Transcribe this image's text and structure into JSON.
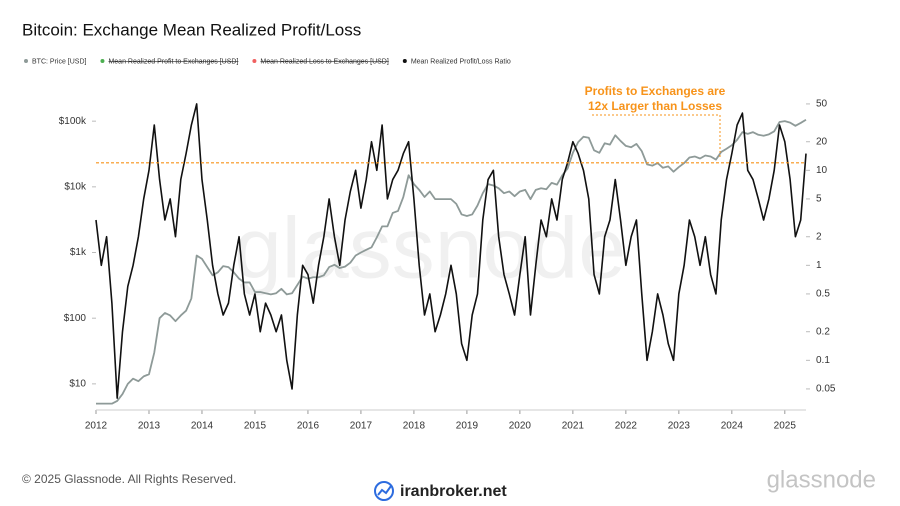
{
  "chart_data": {
    "type": "line",
    "title": "Bitcoin: Exchange Mean Realized Profit/Loss",
    "watermark": "glassnode",
    "footer": "© 2025 Glassnode. All Rights Reserved.",
    "brand": "glassnode",
    "partner": "iranbroker.net",
    "annotation": {
      "lines": [
        "Profits to Exchanges are",
        "12x Larger than Losses"
      ],
      "color": "#f7931a"
    },
    "reference_line": {
      "value": 12,
      "axis": "y2",
      "color": "#f7931a"
    },
    "log_y": true,
    "log_y2": true,
    "xlim": [
      2012,
      2025.4
    ],
    "xticks": [
      2012,
      2013,
      2014,
      2015,
      2016,
      2017,
      2018,
      2019,
      2020,
      2021,
      2022,
      2023,
      2024,
      2025
    ],
    "ylim": [
      4,
      210000
    ],
    "yticks": [
      {
        "value": 10,
        "label": "$10"
      },
      {
        "value": 100,
        "label": "$100"
      },
      {
        "value": 1000,
        "label": "$1k"
      },
      {
        "value": 10000,
        "label": "$10k"
      },
      {
        "value": 100000,
        "label": "$100k"
      }
    ],
    "y2lim": [
      0.03,
      55
    ],
    "y2ticks": [
      0.05,
      0.1,
      0.2,
      0.5,
      1,
      2,
      5,
      10,
      20,
      50
    ],
    "x": [
      2012.0,
      2012.1,
      2012.2,
      2012.3,
      2012.4,
      2012.5,
      2012.6,
      2012.7,
      2012.8,
      2012.9,
      2013.0,
      2013.1,
      2013.2,
      2013.3,
      2013.4,
      2013.5,
      2013.6,
      2013.7,
      2013.8,
      2013.9,
      2014.0,
      2014.1,
      2014.2,
      2014.3,
      2014.4,
      2014.5,
      2014.6,
      2014.7,
      2014.8,
      2014.9,
      2015.0,
      2015.1,
      2015.2,
      2015.3,
      2015.4,
      2015.5,
      2015.6,
      2015.7,
      2015.8,
      2015.9,
      2016.0,
      2016.1,
      2016.2,
      2016.3,
      2016.4,
      2016.5,
      2016.6,
      2016.7,
      2016.8,
      2016.9,
      2017.0,
      2017.1,
      2017.2,
      2017.3,
      2017.4,
      2017.5,
      2017.6,
      2017.7,
      2017.8,
      2017.9,
      2018.0,
      2018.1,
      2018.2,
      2018.3,
      2018.4,
      2018.5,
      2018.6,
      2018.7,
      2018.8,
      2018.9,
      2019.0,
      2019.1,
      2019.2,
      2019.3,
      2019.4,
      2019.5,
      2019.6,
      2019.7,
      2019.8,
      2019.9,
      2020.0,
      2020.1,
      2020.2,
      2020.3,
      2020.4,
      2020.5,
      2020.6,
      2020.7,
      2020.8,
      2020.9,
      2021.0,
      2021.1,
      2021.2,
      2021.3,
      2021.4,
      2021.5,
      2021.6,
      2021.7,
      2021.8,
      2021.9,
      2022.0,
      2022.1,
      2022.2,
      2022.3,
      2022.4,
      2022.5,
      2022.6,
      2022.7,
      2022.8,
      2022.9,
      2023.0,
      2023.1,
      2023.2,
      2023.3,
      2023.4,
      2023.5,
      2023.6,
      2023.7,
      2023.8,
      2023.9,
      2024.0,
      2024.1,
      2024.2,
      2024.3,
      2024.4,
      2024.5,
      2024.6,
      2024.7,
      2024.8,
      2024.9,
      2025.0,
      2025.1,
      2025.2,
      2025.3,
      2025.4
    ],
    "series": [
      {
        "name": "BTC: Price [USD]",
        "color": "#8e9a98",
        "values": [
          5,
          5,
          5,
          5,
          5.5,
          7,
          10,
          12,
          11,
          13,
          14,
          30,
          100,
          120,
          110,
          90,
          110,
          130,
          200,
          900,
          800,
          600,
          450,
          500,
          620,
          600,
          500,
          400,
          350,
          350,
          250,
          250,
          240,
          230,
          240,
          280,
          230,
          240,
          320,
          430,
          400,
          420,
          420,
          450,
          600,
          650,
          580,
          610,
          700,
          900,
          1000,
          1100,
          1200,
          1700,
          2500,
          2500,
          4000,
          4300,
          7000,
          15000,
          11000,
          9000,
          7000,
          8500,
          6500,
          6500,
          6500,
          6500,
          5500,
          3800,
          3600,
          3800,
          5200,
          8000,
          11000,
          10500,
          9500,
          8000,
          8500,
          7200,
          8500,
          9000,
          6500,
          9000,
          9500,
          9200,
          11500,
          10800,
          15000,
          19000,
          33000,
          48000,
          58000,
          56000,
          36000,
          33000,
          46000,
          44000,
          61000,
          50000,
          42000,
          40000,
          45000,
          35000,
          22000,
          21000,
          23000,
          19500,
          20500,
          17000,
          20000,
          23000,
          28000,
          29000,
          27000,
          30000,
          29000,
          26000,
          34000,
          38000,
          43000,
          52000,
          68000,
          64000,
          68000,
          62000,
          60000,
          63000,
          70000,
          97000,
          100000,
          95000,
          85000,
          94000,
          105000
        ]
      },
      {
        "name": "Mean Realized Profit to Exchanges [USD]",
        "color": "#4caf50",
        "hidden": true
      },
      {
        "name": "Mean Realized Loss to Exchanges [USD]",
        "color": "#f06060",
        "hidden": true
      },
      {
        "name": "Mean Realized Profit/Loss Ratio",
        "color": "#111111",
        "axis": "y2",
        "values": [
          3,
          1,
          2,
          0.4,
          0.04,
          0.2,
          0.6,
          1,
          2,
          5,
          10,
          30,
          8,
          3,
          5,
          2,
          8,
          15,
          30,
          50,
          8,
          3,
          1,
          0.5,
          0.3,
          0.4,
          1,
          2,
          0.5,
          0.3,
          0.5,
          0.2,
          0.4,
          0.3,
          0.2,
          0.3,
          0.1,
          0.05,
          0.3,
          1,
          0.8,
          0.4,
          1,
          2,
          5,
          2,
          1,
          3,
          6,
          10,
          4,
          8,
          20,
          10,
          30,
          5,
          8,
          10,
          15,
          20,
          5,
          1,
          0.3,
          0.5,
          0.2,
          0.3,
          0.5,
          1,
          0.5,
          0.15,
          0.1,
          0.3,
          0.5,
          3,
          8,
          10,
          2,
          0.8,
          0.5,
          0.3,
          0.8,
          2,
          0.3,
          1,
          3,
          2,
          5,
          3,
          8,
          12,
          20,
          15,
          10,
          5,
          0.8,
          0.5,
          2,
          3,
          8,
          3,
          1,
          2,
          3,
          0.5,
          0.1,
          0.2,
          0.5,
          0.3,
          0.15,
          0.1,
          0.5,
          1,
          3,
          2,
          1,
          2,
          0.8,
          0.5,
          3,
          8,
          15,
          30,
          40,
          10,
          8,
          5,
          3,
          5,
          10,
          30,
          20,
          8,
          2,
          3,
          15
        ]
      }
    ]
  }
}
